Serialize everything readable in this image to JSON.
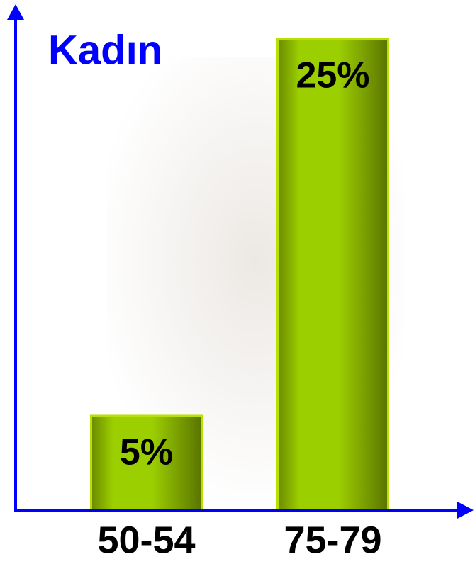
{
  "chart_data": {
    "type": "bar",
    "title": "Kadın",
    "categories": [
      "50-54",
      "75-79"
    ],
    "values": [
      5,
      25
    ],
    "value_labels": [
      "5%",
      "25%"
    ],
    "color": "#8fbe00",
    "ylim": [
      0,
      26.5
    ]
  }
}
